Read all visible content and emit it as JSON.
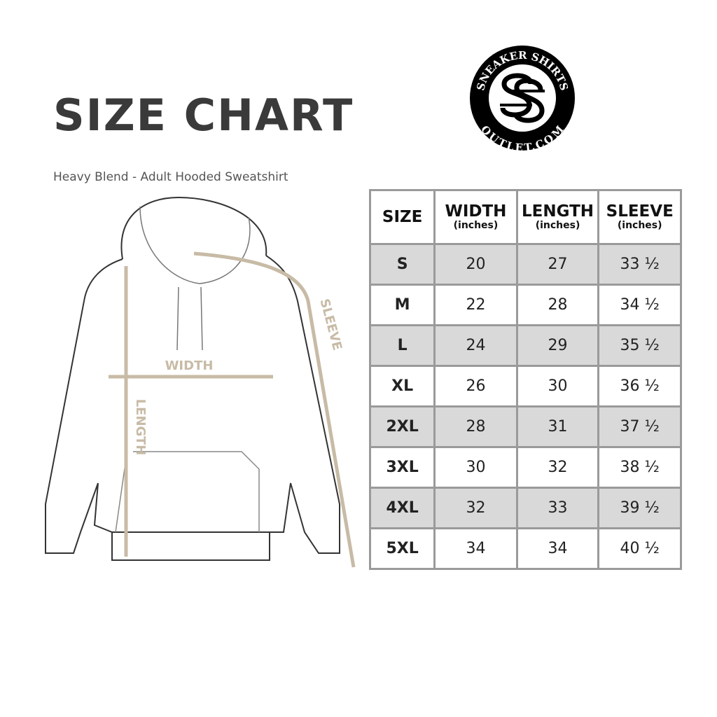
{
  "header": {
    "title": "SIZE CHART",
    "subtitle": "Heavy Blend - Adult Hooded Sweatshirt"
  },
  "logo": {
    "text_top": "SNEAKER SHIRTS",
    "text_bottom": "OUTLET.COM",
    "monogram": "SS"
  },
  "diagram": {
    "labels": {
      "width": "WIDTH",
      "length": "LENGTH",
      "sleeve": "SLEEVE"
    },
    "measure_color": "#c8bba6"
  },
  "table": {
    "headers": [
      {
        "label": "SIZE",
        "unit": ""
      },
      {
        "label": "WIDTH",
        "unit": "(inches)"
      },
      {
        "label": "LENGTH",
        "unit": "(inches)"
      },
      {
        "label": "SLEEVE",
        "unit": "(inches)"
      }
    ],
    "rows": [
      [
        "S",
        "20",
        "27",
        "33 ½"
      ],
      [
        "M",
        "22",
        "28",
        "34 ½"
      ],
      [
        "L",
        "24",
        "29",
        "35 ½"
      ],
      [
        "XL",
        "26",
        "30",
        "36 ½"
      ],
      [
        "2XL",
        "28",
        "31",
        "37 ½"
      ],
      [
        "3XL",
        "30",
        "32",
        "38 ½"
      ],
      [
        "4XL",
        "32",
        "33",
        "39 ½"
      ],
      [
        "5XL",
        "34",
        "34",
        "40 ½"
      ]
    ],
    "alt_row_color": "#d9d9d9"
  }
}
